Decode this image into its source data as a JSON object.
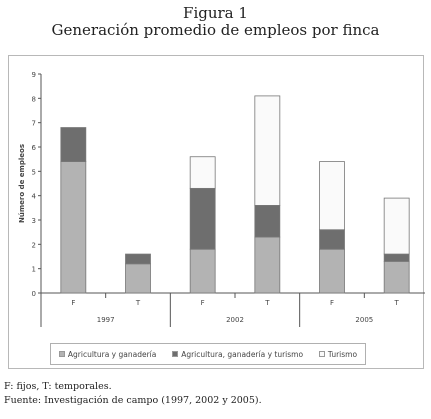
{
  "figure": {
    "number": "Figura 1",
    "title": "Generación promedio de empleos por finca"
  },
  "footnotes": {
    "abbrev": "F: fijos, T: temporales.",
    "source": "Fuente: Investigación de campo (1997, 2002 y 2005)."
  },
  "chart_data": {
    "type": "bar",
    "stacked": true,
    "ylabel": "Número de empleos",
    "ylim": [
      0,
      9
    ],
    "yticks": [
      "0",
      "1",
      "2",
      "3",
      "4",
      "5",
      "6",
      "7",
      "8",
      "9"
    ],
    "groups": [
      "1997",
      "2002",
      "2005"
    ],
    "categories": [
      "F",
      "T",
      "F",
      "T",
      "F",
      "T"
    ],
    "category_group": [
      0,
      0,
      1,
      1,
      2,
      2
    ],
    "series": [
      {
        "name": "Agricultura y ganadería",
        "color": "#b3b3b3",
        "values": [
          5.4,
          1.2,
          1.8,
          2.3,
          1.8,
          1.3
        ]
      },
      {
        "name": "Agricultura, ganadería y turismo",
        "color": "#6e6e6e",
        "values": [
          1.4,
          0.4,
          2.5,
          1.3,
          0.8,
          0.3
        ]
      },
      {
        "name": "Turismo",
        "color": "#fafafa",
        "values": [
          0,
          0,
          1.3,
          4.5,
          2.8,
          2.3
        ]
      }
    ],
    "grid": false,
    "legend_position": "bottom"
  }
}
